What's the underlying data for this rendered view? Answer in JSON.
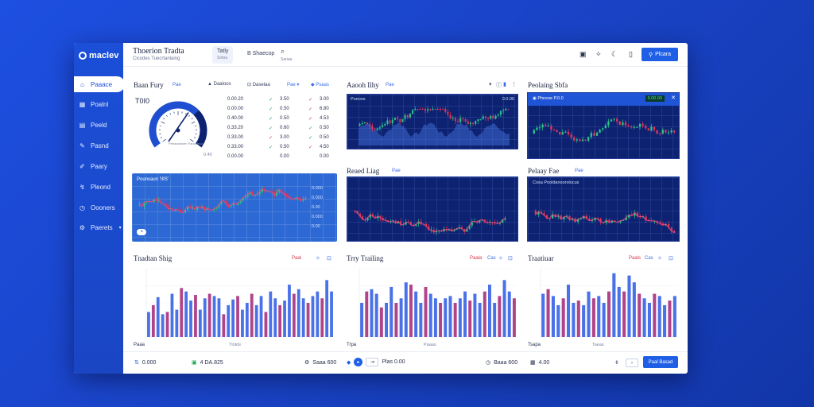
{
  "app": {
    "logo": "maclev",
    "title": "Thoerion Tradta",
    "subtitle": "Cicodes Tuecrtanlaing"
  },
  "header": {
    "tabs": [
      {
        "label": "Tatly",
        "sub": "Sotoa"
      },
      {
        "label": "B Shaecop",
        "sub": ""
      }
    ],
    "search_label": "Sanaa",
    "primary_button": "Plcara"
  },
  "sidebar": {
    "items": [
      {
        "label": "Paaace",
        "icon": "home-icon"
      },
      {
        "label": "Poalnl",
        "icon": "grid-icon"
      },
      {
        "label": "Peeld",
        "icon": "table-icon"
      },
      {
        "label": "Pasnd",
        "icon": "pen-icon"
      },
      {
        "label": "Paary",
        "icon": "edit-icon"
      },
      {
        "label": "Pleond",
        "icon": "chart-icon"
      },
      {
        "label": "Oooners",
        "icon": "clock-icon"
      },
      {
        "label": "Paerets",
        "icon": "settings-icon"
      }
    ]
  },
  "panel1": {
    "title": "Baan Fury",
    "tag": "Pae",
    "btn1": "Daaloos",
    "btn2": "Daselaa",
    "btn3": "Pae",
    "btn4": "Psaas",
    "gauge_label": "T0I0",
    "gauge_value": 0.68,
    "gauge_caption": "Peeaaotosen Faoosteoa",
    "gauge_scale": "0.40",
    "rows": [
      {
        "a": "0.00.20",
        "b": "3.50",
        "c": "3.00",
        "b_dir": "up",
        "c_dir": "dn"
      },
      {
        "a": "0.00.00",
        "b": "0.50",
        "c": "6.80",
        "b_dir": "up",
        "c_dir": "dn"
      },
      {
        "a": "0.40.00",
        "b": "0.50",
        "c": "4.53",
        "b_dir": "up",
        "c_dir": "dn"
      },
      {
        "a": "0.33.20",
        "b": "0.60",
        "c": "0.50",
        "b_dir": "up",
        "c_dir": "up"
      },
      {
        "a": "0.33.00",
        "b": "3.00",
        "c": "0.50",
        "b_dir": "dn",
        "c_dir": "up"
      },
      {
        "a": "0.33.00",
        "b": "0.50",
        "c": "4.50",
        "b_dir": "up",
        "c_dir": "dn"
      },
      {
        "a": "0.00.00",
        "b": "0.00",
        "c": "0.00",
        "b_dir": "",
        "c_dir": ""
      }
    ]
  },
  "panel2": {
    "title": "Aaooh Ilhy",
    "tag": "Pae",
    "inner": "Poeoos",
    "price": "0.0.00"
  },
  "panel3": {
    "title": "Peolaing Sbfa",
    "inner": "Phnsoe P.0.0",
    "price": "0.00.00"
  },
  "panel4": {
    "title": "Pounvaun  'IIIS'",
    "scale": [
      "0.000",
      "0.000",
      "0.00",
      "0.000",
      "0.00"
    ]
  },
  "panel5": {
    "title": "Reaed Liag",
    "tag": "Pae"
  },
  "panel6": {
    "title": "Pelaay Fae",
    "tag": "Pae",
    "inner": "Cosa Pooldanoorolocus"
  },
  "bars1": {
    "title": "Tnadtan Shig",
    "tag": "Paal",
    "xlabel": "Tlotds",
    "bottom_left": "Paaa"
  },
  "bars2": {
    "title": "Trry Trailing",
    "tag": "Paala",
    "tag2": "Cas",
    "xlabel": "Paaas",
    "bottom_left": "Trpa"
  },
  "bars3": {
    "title": "Traatiuar",
    "tag": "Paals",
    "tag2": "Cas",
    "xlabel": "Taeas",
    "bottom_left": "Tsapa"
  },
  "footer": {
    "f1": "0.000",
    "f2": "4 DA.825",
    "f3": "Saaa  600",
    "f4": "Plas 0.00",
    "f5": "Baaa  600",
    "f6": "4.00",
    "button": "Paal Basad"
  },
  "chart_data": [
    {
      "type": "bar",
      "title": "Tnadtan Shig",
      "x": [
        1,
        2,
        3,
        4,
        5,
        6,
        7,
        8,
        9,
        10,
        11,
        12,
        13,
        14,
        15,
        16,
        17,
        18,
        19,
        20,
        21,
        22,
        23,
        24,
        25,
        26,
        27,
        28,
        29,
        30,
        31,
        32,
        33,
        34,
        35,
        36,
        37,
        38,
        39,
        40
      ],
      "values": [
        22,
        28,
        35,
        20,
        22,
        38,
        24,
        43,
        40,
        32,
        37,
        24,
        34,
        38,
        36,
        34,
        20,
        28,
        33,
        36,
        24,
        30,
        38,
        28,
        36,
        22,
        40,
        34,
        28,
        32,
        46,
        38,
        42,
        34,
        30,
        36,
        40,
        34,
        50,
        40
      ],
      "series_colors": [
        "#4a72e8",
        "#b0448a"
      ]
    },
    {
      "type": "bar",
      "title": "Trry Trailing",
      "values": [
        30,
        40,
        42,
        38,
        26,
        30,
        44,
        30,
        34,
        48,
        46,
        40,
        30,
        44,
        38,
        34,
        30,
        34,
        36,
        30,
        34,
        40,
        32,
        38,
        30,
        40,
        46,
        30,
        36,
        50,
        40,
        34
      ],
      "series_colors": [
        "#4a72e8",
        "#b0448a"
      ]
    },
    {
      "type": "bar",
      "title": "Traatiuar",
      "values": [
        38,
        42,
        36,
        28,
        34,
        46,
        30,
        32,
        28,
        40,
        34,
        36,
        30,
        40,
        56,
        44,
        40,
        54,
        48,
        38,
        34,
        30,
        38,
        36,
        28,
        32,
        36
      ],
      "series_colors": [
        "#4a72e8",
        "#b0448a"
      ]
    }
  ],
  "colors": {
    "accent": "#1f5fe6",
    "up": "#17a34a",
    "down": "#d8334a",
    "candle_up": "#2bc48a",
    "candle_down": "#e0345a"
  }
}
